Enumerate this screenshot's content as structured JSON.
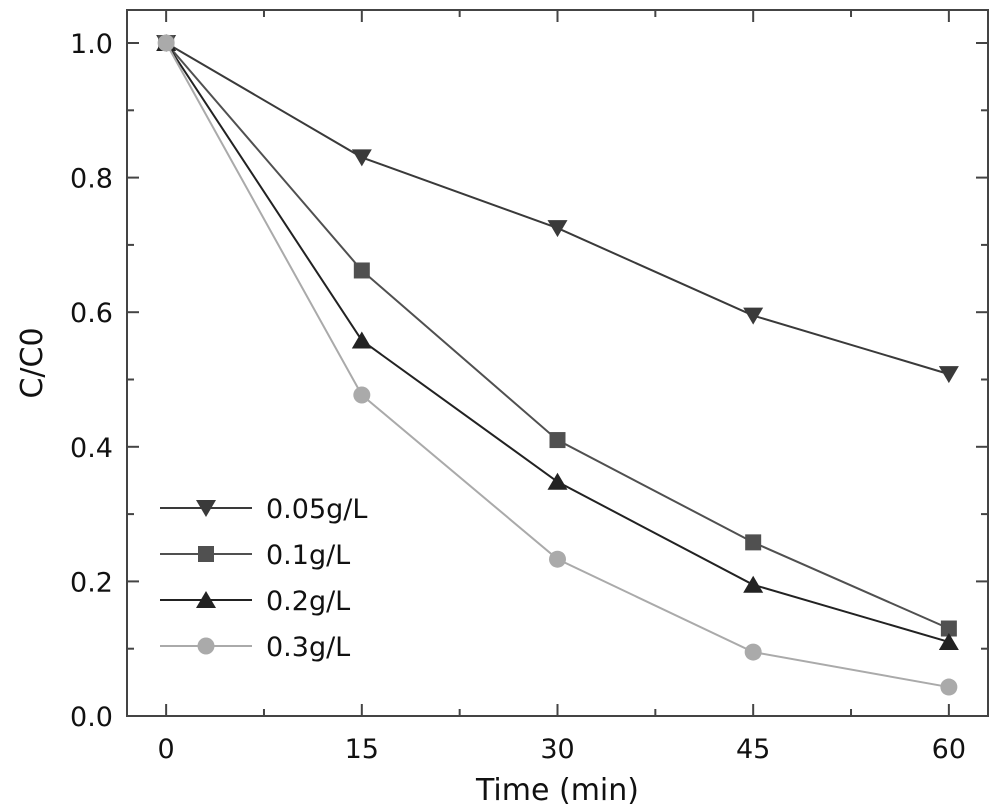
{
  "chart_data": {
    "type": "line",
    "xlabel": "Time (min)",
    "ylabel": "C/C0",
    "xlim": [
      -3,
      63
    ],
    "ylim": [
      0,
      1.0
    ],
    "x_ticks": [
      0,
      15,
      30,
      45,
      60
    ],
    "x_tick_labels": [
      "0",
      "15",
      "30",
      "45",
      "60"
    ],
    "y_ticks": [
      0.0,
      0.2,
      0.4,
      0.6,
      0.8,
      1.0
    ],
    "y_tick_labels": [
      "0.0",
      "0.2",
      "0.4",
      "0.6",
      "0.8",
      "1.0"
    ],
    "grid": false,
    "legend_position": "bottom-left",
    "x": [
      0,
      15,
      30,
      45,
      60
    ],
    "series": [
      {
        "name": "0.05g/L",
        "values": [
          1.0,
          0.83,
          0.725,
          0.595,
          0.508
        ],
        "marker": "triangle-down",
        "color": "#3a3a3a"
      },
      {
        "name": "0.1g/L",
        "values": [
          1.0,
          0.662,
          0.41,
          0.258,
          0.13
        ],
        "marker": "square",
        "color": "#505050"
      },
      {
        "name": "0.2g/L",
        "values": [
          1.0,
          0.558,
          0.348,
          0.195,
          0.11
        ],
        "marker": "triangle-up",
        "color": "#222222"
      },
      {
        "name": "0.3g/L",
        "values": [
          1.0,
          0.477,
          0.233,
          0.095,
          0.043
        ],
        "marker": "circle",
        "color": "#aaaaaa"
      }
    ]
  }
}
